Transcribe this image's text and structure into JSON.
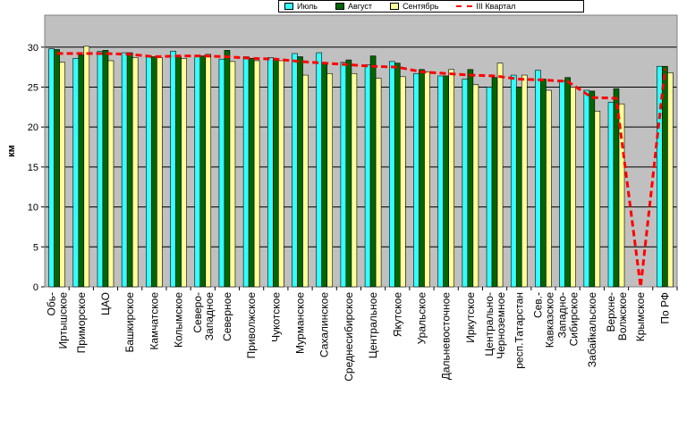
{
  "chart_data": {
    "type": "bar",
    "ylabel": "км",
    "ylim": [
      0,
      34
    ],
    "yticks": [
      0,
      5,
      10,
      15,
      20,
      25,
      30
    ],
    "grid": true,
    "legend_position": "top",
    "categories": [
      "Обь-Иртышское",
      "Приморское",
      "ЦАО",
      "Башкирское",
      "Камчатское",
      "Колымское",
      "Северо-Западное",
      "Северное",
      "Приволжское",
      "Чукотское",
      "Мурманское",
      "Сахалинское",
      "Среднесибирское",
      "Центральное",
      "Якутское",
      "Уральское",
      "Дальневосточное",
      "Иркутское",
      "Центрально-Черноземное",
      "респ.Татарстан",
      "Сев.-Кавказское",
      "Западно-Сибирское",
      "Забайкальское",
      "Верхне-Волжское",
      "Крымское",
      "По РФ"
    ],
    "category_lines": [
      [
        "Обь-",
        "Иртышское"
      ],
      [
        "Приморское"
      ],
      [
        "ЦАО"
      ],
      [
        "Башкирское"
      ],
      [
        "Камчатское"
      ],
      [
        "Колымское"
      ],
      [
        "Северо-",
        "Западное"
      ],
      [
        "Северное"
      ],
      [
        "Приволжское"
      ],
      [
        "Чукотское"
      ],
      [
        "Мурманское"
      ],
      [
        "Сахалинское"
      ],
      [
        "Среднесибирское"
      ],
      [
        "Центральное"
      ],
      [
        "Якутское"
      ],
      [
        "Уральское"
      ],
      [
        "Дальневосточное"
      ],
      [
        "Иркутское"
      ],
      [
        "Центрально-",
        "Черноземное"
      ],
      [
        "респ.Татарстан"
      ],
      [
        "Сев.-",
        "Кавказское"
      ],
      [
        "Западно-",
        "Сибирское"
      ],
      [
        "Забайкальское"
      ],
      [
        "Верхне-",
        "Волжское"
      ],
      [
        "Крымское"
      ],
      [
        "По РФ"
      ]
    ],
    "series": [
      {
        "name": "Июль",
        "color": "#33ffff",
        "values": [
          29.8,
          28.6,
          29.5,
          29.3,
          28.9,
          29.5,
          28.9,
          28.5,
          28.8,
          28.7,
          29.2,
          29.3,
          28.1,
          27.8,
          28.2,
          26.7,
          26.4,
          26.0,
          25.0,
          26.5,
          27.1,
          25.8,
          24.6,
          23.1,
          0,
          27.6
        ]
      },
      {
        "name": "Август",
        "color": "#006600",
        "values": [
          29.7,
          29.0,
          29.6,
          29.3,
          28.8,
          28.8,
          28.9,
          29.6,
          28.6,
          28.5,
          28.8,
          28.0,
          28.4,
          28.9,
          28.0,
          27.2,
          26.4,
          27.2,
          26.2,
          25.0,
          26.0,
          26.2,
          24.5,
          24.8,
          0,
          27.6
        ]
      },
      {
        "name": "Сентябрь",
        "color": "#ffff99",
        "values": [
          28.1,
          30.1,
          28.3,
          28.7,
          28.7,
          28.6,
          29.1,
          28.2,
          28.3,
          28.3,
          26.5,
          26.7,
          26.7,
          26.1,
          26.3,
          26.9,
          27.2,
          25.3,
          28.0,
          26.5,
          24.6,
          25.0,
          22.0,
          22.9,
          0,
          26.8
        ]
      }
    ],
    "line_series": {
      "name": "III Квартал",
      "color": "#ff0000",
      "values": [
        29.2,
        29.2,
        29.2,
        29.1,
        28.8,
        28.9,
        28.9,
        28.8,
        28.6,
        28.5,
        28.2,
        28.0,
        27.8,
        27.6,
        27.5,
        26.9,
        26.7,
        26.5,
        26.4,
        26.0,
        25.9,
        25.7,
        23.7,
        23.6,
        0,
        27.3
      ]
    }
  }
}
